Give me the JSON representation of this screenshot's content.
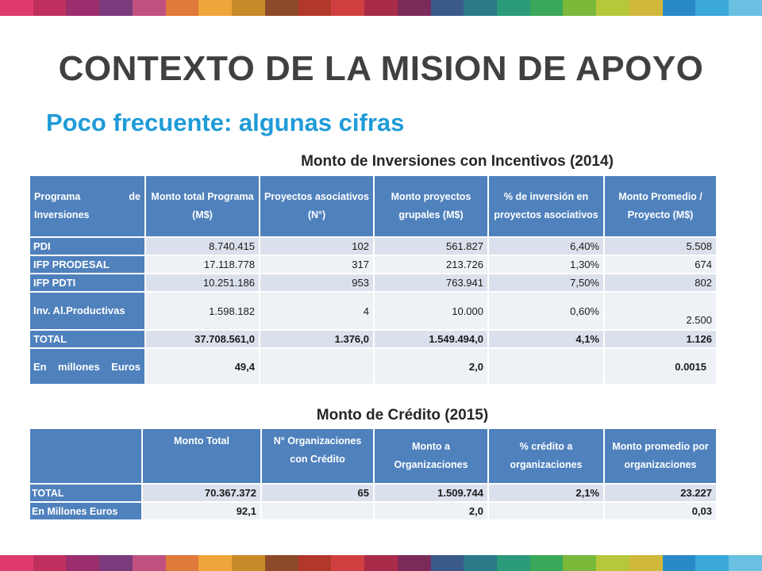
{
  "colors": {
    "title": "#404040",
    "subtitle": "#1f9bd7",
    "header_bg": "#4f81bd",
    "row_alt": "#dbe1ec",
    "row_plain": "#eef1f6",
    "stripe": [
      "#e03b6e",
      "#c0305f",
      "#9b2f6e",
      "#7a3a7c",
      "#c0517e",
      "#e07a3a",
      "#f0a53a",
      "#c98a2a",
      "#8c4a28",
      "#b2382b",
      "#d04040",
      "#a82b4a",
      "#7c2a5a",
      "#3a5a8c",
      "#2a7a8a",
      "#2a9a7a",
      "#3aa85a",
      "#7ab83a",
      "#b6c83a",
      "#d0b83a",
      "#2a8ac8",
      "#3aa8d8",
      "#6ac0e0"
    ]
  },
  "slide": {
    "title": "CONTEXTO DE LA MISION DE APOYO",
    "subtitle": "Poco frecuente: algunas cifras"
  },
  "table1": {
    "caption": "Monto de Inversiones con Incentivos (2014)",
    "headers": [
      "Programa de Inversiones",
      "Monto total Programa (M$)",
      "Proyectos asociativos (N°)",
      "Monto proyectos grupales (M$)",
      "% de inversión en proyectos asociativos",
      "Monto Promedio / Proyecto (M$)"
    ],
    "rows": [
      {
        "label": "PDI",
        "cells": [
          "8.740.415",
          "102",
          "561.827",
          "6,40%",
          "5.508"
        ]
      },
      {
        "label": "IFP PRODESAL",
        "cells": [
          "17.118.778",
          "317",
          "213.726",
          "1,30%",
          "674"
        ]
      },
      {
        "label": "IFP PDTI",
        "cells": [
          "10.251.186",
          "953",
          "763.941",
          "7,50%",
          "802"
        ]
      },
      {
        "label": "Inv. Al.Productivas",
        "cells": [
          "1.598.182",
          "4",
          "10.000",
          "0,60%",
          "2.500"
        ]
      },
      {
        "label": "TOTAL",
        "cells": [
          "37.708.561,0",
          "1.376,0",
          "1.549.494,0",
          "4,1%",
          "1.126"
        ]
      },
      {
        "label": "En millones Euros",
        "cells": [
          "49,4",
          "",
          "2,0",
          "",
          "0.0015"
        ]
      }
    ]
  },
  "table2": {
    "caption": "Monto de Crédito (2015)",
    "headers": [
      "",
      "Monto Total",
      "N° Organizaciones con Crédito",
      "Monto a Organizaciones",
      "% crédito a organizaciones",
      "Monto promedio por organizaciones"
    ],
    "rows": [
      {
        "label": "TOTAL",
        "cells": [
          "70.367.372",
          "65",
          "1.509.744",
          "2,1%",
          "23.227"
        ]
      },
      {
        "label": "En Millones Euros",
        "cells": [
          "92,1",
          "",
          "2,0",
          "",
          "0,03"
        ]
      }
    ]
  }
}
